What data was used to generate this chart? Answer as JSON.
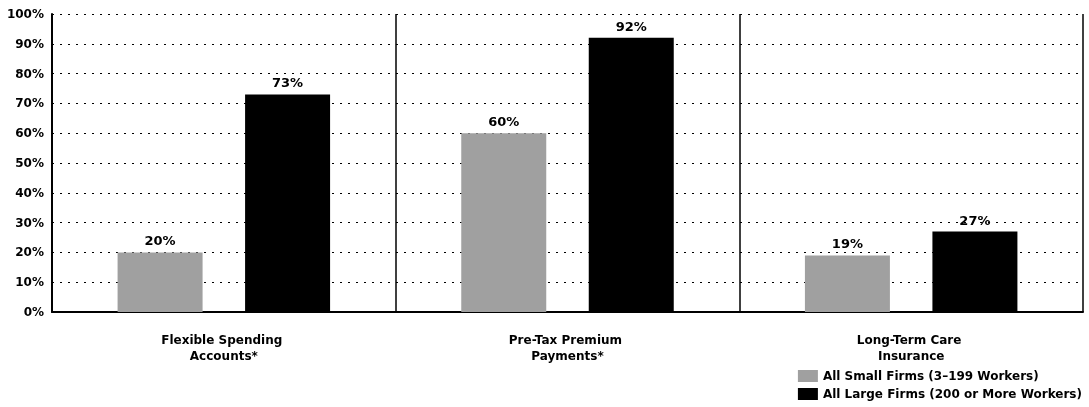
{
  "chart_data": {
    "type": "bar",
    "categories": [
      "Flexible Spending Accounts*",
      "Pre-Tax Premium Payments*",
      "Long-Term Care Insurance"
    ],
    "series": [
      {
        "name": "All Small Firms (3–199 Workers)",
        "color": "#a0a0a0",
        "values": [
          20,
          60,
          19
        ],
        "value_labels": [
          "20%",
          "60%",
          "19%"
        ]
      },
      {
        "name": "All Large Firms (200 or More Workers)",
        "color": "#000000",
        "values": [
          73,
          92,
          27
        ],
        "value_labels": [
          "73%",
          "92%",
          "27%"
        ]
      }
    ],
    "ylim": [
      0,
      100
    ],
    "yticks": [
      {
        "value": 0,
        "label": "0%"
      },
      {
        "value": 10,
        "label": "10%"
      },
      {
        "value": 20,
        "label": "20%"
      },
      {
        "value": 30,
        "label": "30%"
      },
      {
        "value": 40,
        "label": "40%"
      },
      {
        "value": 50,
        "label": "50%"
      },
      {
        "value": 60,
        "label": "60%"
      },
      {
        "value": 70,
        "label": "70%"
      },
      {
        "value": 80,
        "label": "80%"
      },
      {
        "value": 90,
        "label": "90%"
      },
      {
        "value": 100,
        "label": "100%"
      }
    ],
    "grid": true,
    "legend": "bottom right"
  }
}
